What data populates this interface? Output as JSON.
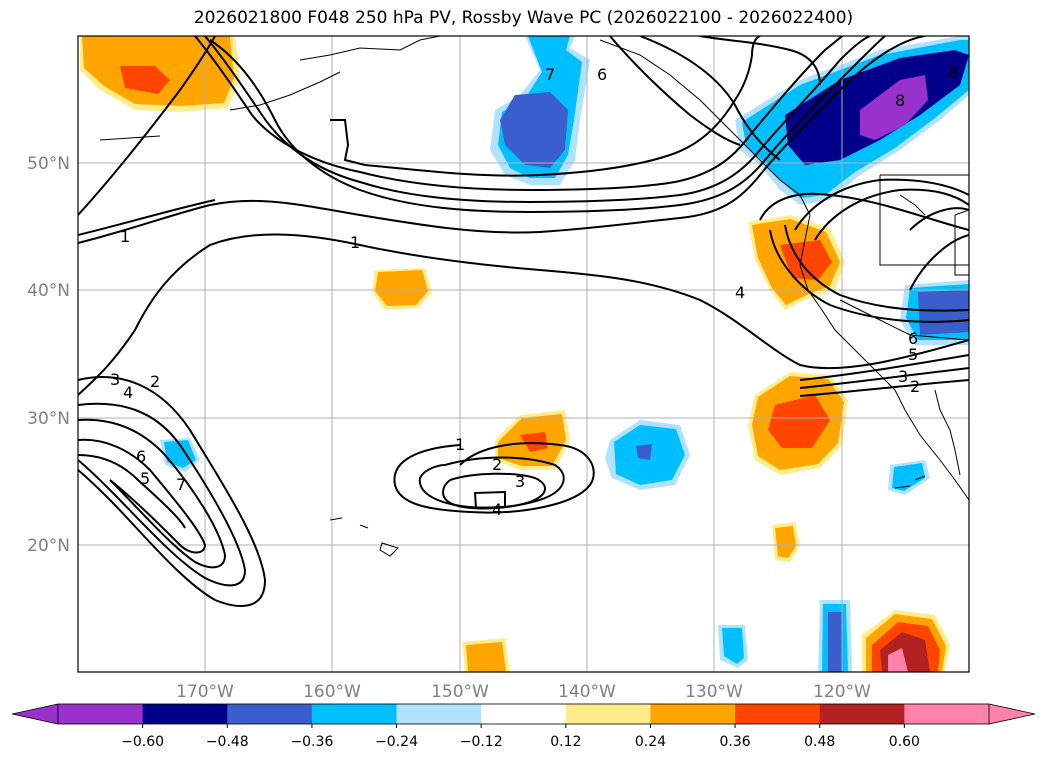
{
  "title": "2026021800 F048 250 hPa PV, Rossby Wave PC (2026022100 - 2026022400)",
  "map": {
    "lon_labels": [
      "170°W",
      "160°W",
      "150°W",
      "140°W",
      "130°W",
      "120°W"
    ],
    "lat_labels": [
      "20°N",
      "30°N",
      "40°N",
      "50°N"
    ],
    "contour_labels": [
      "1",
      "1",
      "2",
      "3",
      "4",
      "1",
      "2",
      "3",
      "4",
      "5",
      "6",
      "7",
      "4",
      "6",
      "7",
      "8",
      "3",
      "2",
      "5",
      "6",
      "8"
    ]
  },
  "colorbar": {
    "ticks": [
      "−0.60",
      "−0.48",
      "−0.36",
      "−0.24",
      "−0.12",
      "0.12",
      "0.24",
      "0.36",
      "0.48",
      "0.60"
    ],
    "colors": [
      "#9932cc",
      "#00008b",
      "#3a5fcd",
      "#00bfff",
      "#b0e2ff",
      "#ffffff",
      "#ffec8b",
      "#ffa500",
      "#ff4500",
      "#b22222",
      "#ff82ab",
      "#ff82ab"
    ],
    "under_color": "#9932cc",
    "over_color": "#ff82ab"
  }
}
